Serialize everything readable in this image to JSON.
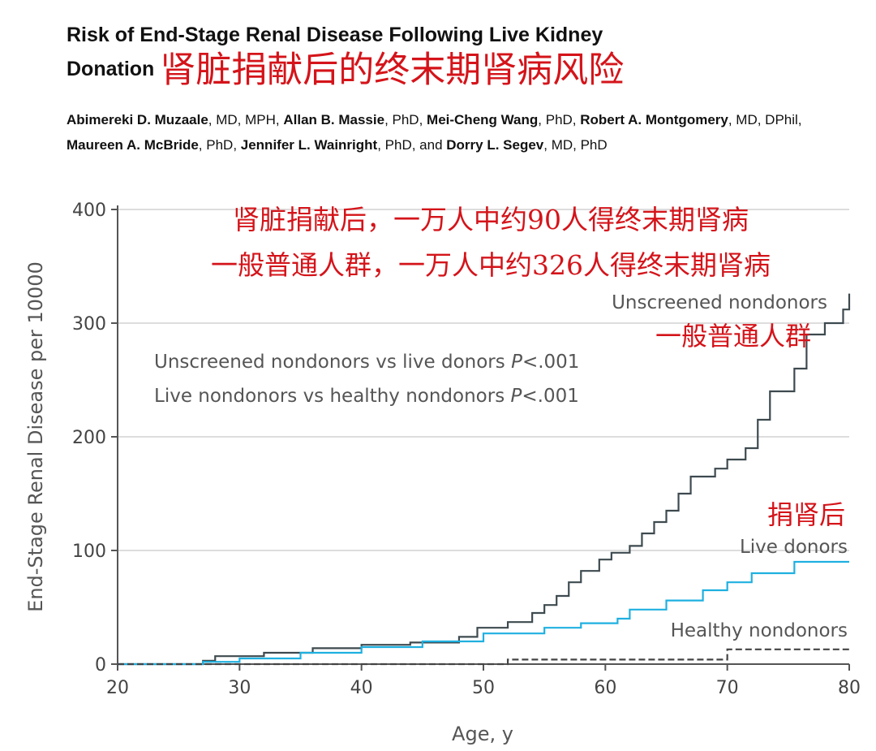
{
  "header": {
    "title": "Risk of End-Stage Renal Disease Following Live Kidney Donation",
    "title_line1": "Risk of End-Stage Renal Disease Following Live Kidney",
    "title_line2": "Donation",
    "title_cn": "肾脏捐献后的终末期肾病风险",
    "authors": [
      {
        "name": "Abimereki D. Muzaale",
        "deg": ", MD, MPH, "
      },
      {
        "name": "Allan B. Massie",
        "deg": ", PhD, "
      },
      {
        "name": "Mei-Cheng Wang",
        "deg": ", PhD, "
      },
      {
        "name": "Robert A. Montgomery",
        "deg": ", MD, DPhil, "
      },
      {
        "name": "Maureen A. McBride",
        "deg": ", PhD, "
      },
      {
        "name": "Jennifer L. Wainright",
        "deg": ", PhD, and "
      },
      {
        "name": "Dorry L. Segev",
        "deg": ", MD, PhD"
      }
    ]
  },
  "chart_data": {
    "type": "line",
    "step": true,
    "xlabel": "Age, y",
    "ylabel": "End-Stage Renal Disease per 10000",
    "xlim": [
      20,
      80
    ],
    "ylim": [
      0,
      400
    ],
    "xticks": [
      20,
      30,
      40,
      50,
      60,
      70,
      80
    ],
    "yticks": [
      0,
      100,
      200,
      300,
      400
    ],
    "grid": "horizontal",
    "annotations": {
      "pvalue1": "Unscreened nondonors vs live donors P<.001",
      "pvalue1_text": "Unscreened nondonors vs live donors ",
      "pvalue2_text": "Live nondonors vs healthy nondonors ",
      "p_symbol": "P",
      "p_value": "<.001",
      "cn_line1": "肾脏捐献后，一万人中约90人得终末期肾病",
      "cn_line2": "一般普通人群，一万人中约326人得终末期肾病",
      "cn_unscreened": "一般普通人群",
      "cn_donors": "捐肾后"
    },
    "series": [
      {
        "name": "Unscreened nondonors",
        "color": "#3d4a4f",
        "dash": false,
        "points": [
          [
            20,
            0
          ],
          [
            27,
            3
          ],
          [
            28,
            7
          ],
          [
            32,
            10
          ],
          [
            36,
            14
          ],
          [
            40,
            17
          ],
          [
            44,
            19
          ],
          [
            48,
            24
          ],
          [
            49.5,
            32
          ],
          [
            52,
            37
          ],
          [
            54,
            45
          ],
          [
            55,
            52
          ],
          [
            56,
            60
          ],
          [
            57,
            72
          ],
          [
            58,
            82
          ],
          [
            59.5,
            92
          ],
          [
            60.5,
            98
          ],
          [
            62,
            104
          ],
          [
            63,
            115
          ],
          [
            64,
            125
          ],
          [
            65,
            135
          ],
          [
            66,
            150
          ],
          [
            67,
            165
          ],
          [
            69,
            172
          ],
          [
            70,
            180
          ],
          [
            71.5,
            190
          ],
          [
            72.5,
            215
          ],
          [
            73.5,
            240
          ],
          [
            74.5,
            240
          ],
          [
            75.5,
            260
          ],
          [
            76.5,
            290
          ],
          [
            78,
            300
          ],
          [
            79.5,
            312
          ],
          [
            80,
            326
          ]
        ]
      },
      {
        "name": "Live donors",
        "color": "#1fb0e0",
        "dash": false,
        "points": [
          [
            20,
            0
          ],
          [
            27,
            2
          ],
          [
            30,
            5
          ],
          [
            35,
            10
          ],
          [
            40,
            15
          ],
          [
            45,
            20
          ],
          [
            50,
            27
          ],
          [
            55,
            32
          ],
          [
            58,
            36
          ],
          [
            61,
            40
          ],
          [
            62,
            48
          ],
          [
            65,
            56
          ],
          [
            68,
            65
          ],
          [
            70,
            72
          ],
          [
            72,
            80
          ],
          [
            75.5,
            90
          ],
          [
            80,
            90
          ]
        ]
      },
      {
        "name": "Healthy nondonors",
        "color": "#444444",
        "dash": true,
        "points": [
          [
            20,
            0
          ],
          [
            51,
            0
          ],
          [
            52,
            4
          ],
          [
            69,
            4
          ],
          [
            70,
            13
          ],
          [
            80,
            13
          ]
        ]
      }
    ]
  }
}
